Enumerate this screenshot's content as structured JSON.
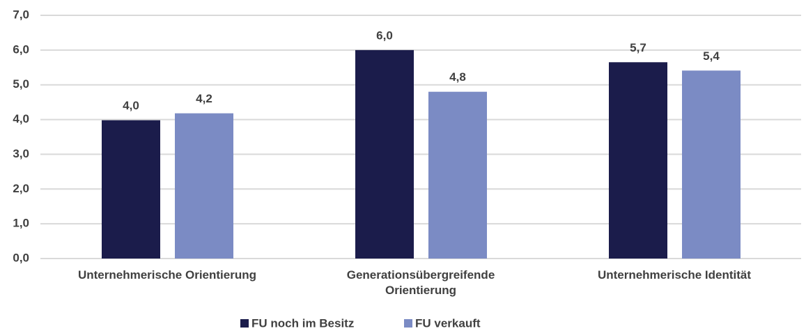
{
  "chart_data": {
    "type": "bar",
    "categories": [
      "Unternehmerische Orientierung",
      "Generationsübergreifende Orientierung",
      "Unternehmerische Identität"
    ],
    "series": [
      {
        "name": "FU noch im Besitz",
        "color": "#1b1c4b",
        "values": [
          3.98,
          6.0,
          5.65
        ],
        "value_labels": [
          "4,0",
          "6,0",
          "5,7"
        ]
      },
      {
        "name": "FU verkauft",
        "color": "#7b8bc4",
        "values": [
          4.18,
          4.8,
          5.41
        ],
        "value_labels": [
          "4,2",
          "4,8",
          "5,4"
        ]
      }
    ],
    "ylim": [
      0,
      7
    ],
    "yticks": [
      {
        "value": 0,
        "label": "0,0"
      },
      {
        "value": 1,
        "label": "1,0"
      },
      {
        "value": 2,
        "label": "2,0"
      },
      {
        "value": 3,
        "label": "3,0"
      },
      {
        "value": 4,
        "label": "4,0"
      },
      {
        "value": 5,
        "label": "5,0"
      },
      {
        "value": 6,
        "label": "6,0"
      },
      {
        "value": 7,
        "label": "7,0"
      }
    ],
    "grid": true,
    "legend": "bottom"
  }
}
